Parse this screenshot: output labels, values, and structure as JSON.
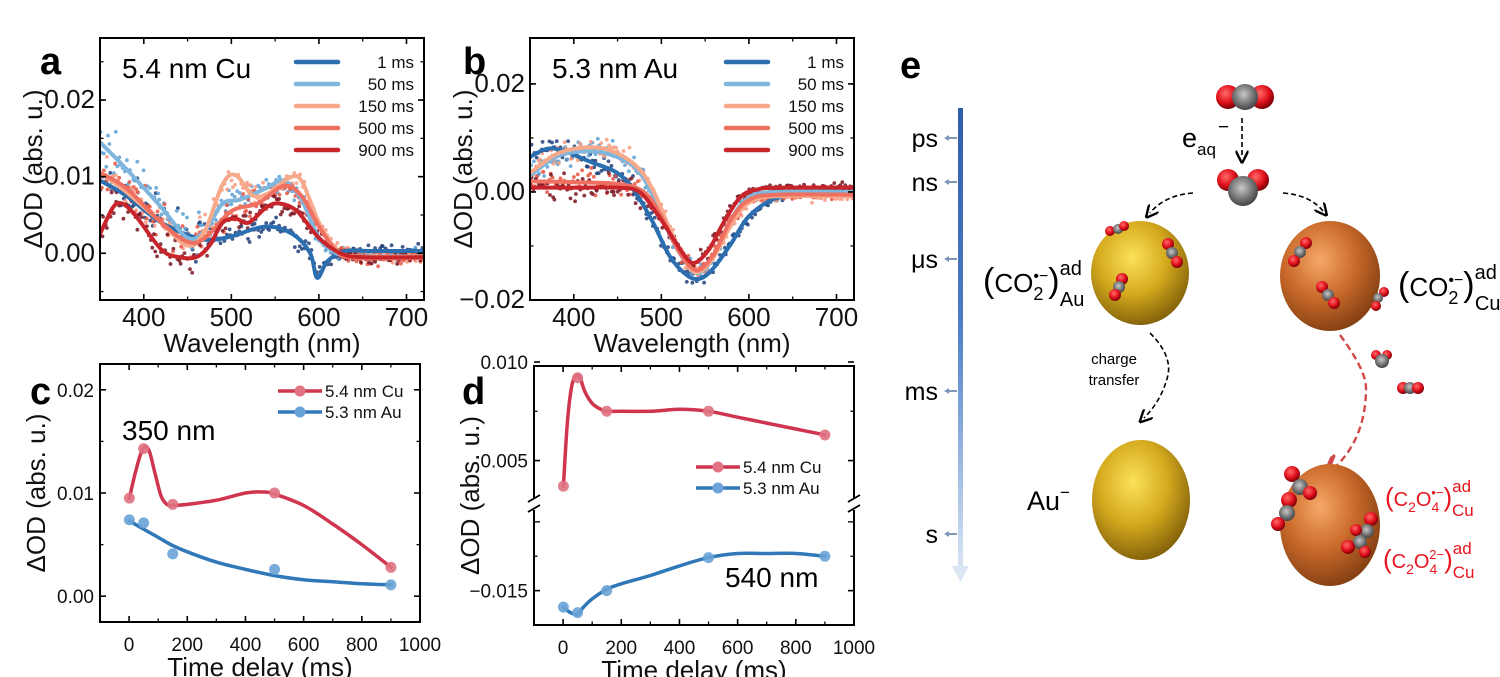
{
  "chart_data": [
    {
      "panel": "a",
      "type": "line",
      "annotation": "5.4 nm Cu",
      "xlabel": "Wavelength (nm)",
      "ylabel": "ΔOD (abs. u.)",
      "xlim": [
        350,
        720
      ],
      "ylim": [
        -0.0061,
        0.0281
      ],
      "xticks": [
        "400",
        "500",
        "600",
        "700"
      ],
      "xtick_values": [
        400,
        500,
        600,
        700
      ],
      "yticks": [
        "0.00",
        "0.01",
        "0.02"
      ],
      "ytick_values": [
        0.0,
        0.01,
        0.02
      ],
      "legend": "top-right",
      "series": [
        {
          "name": "1 ms",
          "color": "#2b6fb0",
          "scatter_color": "#1e3f7a",
          "x": [
            350,
            380,
            420,
            460,
            480,
            500,
            540,
            570,
            590,
            598,
            610,
            630,
            660,
            720
          ],
          "y": [
            0.0095,
            0.0075,
            0.004,
            0.002,
            0.0018,
            0.0022,
            0.0035,
            0.0025,
            0.0,
            -0.0032,
            -0.001,
            0.0003,
            0.0003,
            0.0003
          ]
        },
        {
          "name": "50 ms",
          "color": "#7fb6dd",
          "scatter_color": "#5aa0d4",
          "x": [
            350,
            380,
            420,
            450,
            470,
            490,
            510,
            540,
            560,
            580,
            600,
            620,
            640,
            720
          ],
          "y": [
            0.0145,
            0.011,
            0.006,
            0.002,
            0.003,
            0.0065,
            0.007,
            0.0085,
            0.0095,
            0.007,
            0.002,
            0.0,
            -0.0004,
            -0.0004
          ]
        },
        {
          "name": "150 ms",
          "color": "#f7a98a",
          "scatter_color": "#f79a80",
          "x": [
            350,
            380,
            420,
            450,
            470,
            490,
            505,
            525,
            545,
            565,
            580,
            600,
            620,
            640,
            720
          ],
          "y": [
            0.0105,
            0.008,
            0.004,
            0.001,
            0.003,
            0.009,
            0.0102,
            0.0075,
            0.008,
            0.0098,
            0.0095,
            0.004,
            0.0005,
            -0.0004,
            -0.0004
          ]
        },
        {
          "name": "500 ms",
          "color": "#ef7060",
          "scatter_color": "#e8553f",
          "x": [
            350,
            380,
            420,
            450,
            470,
            500,
            530,
            560,
            580,
            600,
            620,
            640,
            720
          ],
          "y": [
            0.0105,
            0.0085,
            0.004,
            0.0015,
            0.002,
            0.0055,
            0.0065,
            0.0088,
            0.0075,
            0.0035,
            0.0003,
            -0.0006,
            -0.0006
          ]
        },
        {
          "name": "900 ms",
          "color": "#c8242b",
          "scatter_color": "#7a1420",
          "x": [
            350,
            365,
            375,
            390,
            420,
            440,
            460,
            475,
            490,
            505,
            520,
            540,
            555,
            575,
            600,
            625,
            650,
            720
          ],
          "y": [
            0.0025,
            0.006,
            0.0065,
            0.005,
            0.0005,
            -0.0005,
            -0.0005,
            0.001,
            0.004,
            0.0045,
            0.004,
            0.006,
            0.0065,
            0.0055,
            0.002,
            0.0,
            -0.0005,
            -0.0005
          ]
        }
      ]
    },
    {
      "panel": "b",
      "type": "line",
      "annotation": "5.3 nm Au",
      "xlabel": "Wavelength (nm)",
      "ylabel": "ΔOD (abs. u.)",
      "xlim": [
        350,
        720
      ],
      "ylim": [
        -0.02,
        0.0285
      ],
      "xticks": [
        "400",
        "500",
        "600",
        "700"
      ],
      "xtick_values": [
        400,
        500,
        600,
        700
      ],
      "yticks": [
        "−0.02",
        "0.00",
        "0.02"
      ],
      "ytick_values": [
        -0.02,
        0.0,
        0.02
      ],
      "legend": "top-right",
      "series": [
        {
          "name": "1 ms",
          "color": "#2b6fb0",
          "scatter_color": "#1e3f7a",
          "x": [
            350,
            370,
            390,
            420,
            450,
            470,
            490,
            510,
            530,
            545,
            560,
            580,
            600,
            630,
            670,
            720
          ],
          "y": [
            0.0065,
            0.008,
            0.0075,
            0.0055,
            0.0035,
            0.0,
            -0.0055,
            -0.012,
            -0.0155,
            -0.016,
            -0.014,
            -0.0095,
            -0.0045,
            -0.0012,
            0.0,
            0.0
          ]
        },
        {
          "name": "50 ms",
          "color": "#7fb6dd",
          "scatter_color": "#5aa0d4",
          "x": [
            350,
            380,
            410,
            440,
            470,
            490,
            510,
            530,
            543,
            560,
            580,
            600,
            630,
            720
          ],
          "y": [
            0.003,
            0.0065,
            0.0075,
            0.007,
            0.0045,
            -0.0005,
            -0.008,
            -0.0135,
            -0.015,
            -0.012,
            -0.005,
            -0.001,
            0.0,
            0.0
          ]
        },
        {
          "name": "150 ms",
          "color": "#f7a98a",
          "scatter_color": "#f79a80",
          "x": [
            350,
            380,
            410,
            440,
            470,
            490,
            510,
            530,
            543,
            560,
            580,
            600,
            630,
            720
          ],
          "y": [
            0.0035,
            0.007,
            0.0082,
            0.0078,
            0.005,
            0.0005,
            -0.007,
            -0.0135,
            -0.0148,
            -0.012,
            -0.006,
            -0.002,
            -0.0008,
            -0.0008
          ]
        },
        {
          "name": "500 ms",
          "color": "#ef7060",
          "scatter_color": "#e8553f",
          "x": [
            350,
            400,
            450,
            480,
            500,
            520,
            540,
            560,
            580,
            600,
            630,
            720
          ],
          "y": [
            0.002,
            0.0018,
            0.0015,
            0.0,
            -0.0045,
            -0.011,
            -0.0145,
            -0.0115,
            -0.005,
            -0.0015,
            -0.0005,
            -0.0005
          ]
        },
        {
          "name": "900 ms",
          "color": "#c8242b",
          "scatter_color": "#7a1420",
          "x": [
            350,
            400,
            450,
            475,
            495,
            515,
            530,
            540,
            555,
            570,
            590,
            610,
            640,
            720
          ],
          "y": [
            0.0008,
            0.0008,
            0.0008,
            0.0,
            -0.004,
            -0.009,
            -0.0125,
            -0.013,
            -0.0105,
            -0.006,
            -0.001,
            0.0005,
            0.0008,
            0.0008
          ]
        }
      ]
    },
    {
      "panel": "c",
      "type": "line",
      "annotation": "350 nm",
      "xlabel": "Time delay (ms)",
      "ylabel": "ΔOD (abs. u.)",
      "xlim": [
        -100,
        1000
      ],
      "ylim": [
        -0.0025,
        0.0225
      ],
      "xticks": [
        "0",
        "200",
        "400",
        "600",
        "800",
        "1000"
      ],
      "xtick_values": [
        0,
        200,
        400,
        600,
        800,
        1000
      ],
      "yticks": [
        "0.00",
        "0.01",
        "0.02"
      ],
      "ytick_values": [
        0.0,
        0.01,
        0.02
      ],
      "legend": "top-right",
      "series": [
        {
          "name": "5.4 nm Cu",
          "color": "#d0354f",
          "marker_color": "#e07282",
          "x": [
            1,
            50,
            150,
            500,
            900
          ],
          "y": [
            0.0095,
            0.0143,
            0.0089,
            0.01,
            0.0028
          ],
          "fit_x": [
            1,
            20,
            40,
            55,
            70,
            90,
            110,
            130,
            150,
            200,
            300,
            400,
            460,
            500,
            600,
            700,
            800,
            900
          ],
          "fit_y": [
            0.0095,
            0.0118,
            0.0138,
            0.0145,
            0.014,
            0.0118,
            0.0097,
            0.0089,
            0.0088,
            0.0089,
            0.0093,
            0.01,
            0.0101,
            0.0099,
            0.0088,
            0.007,
            0.005,
            0.0028
          ]
        },
        {
          "name": "5.3 nm Au",
          "color": "#3078b8",
          "marker_color": "#6aa3d6",
          "x": [
            1,
            50,
            150,
            500,
            900
          ],
          "y": [
            0.0074,
            0.0071,
            0.0041,
            0.0026,
            0.0011
          ],
          "fit_x": [
            1,
            50,
            100,
            150,
            200,
            300,
            400,
            500,
            600,
            700,
            800,
            900
          ],
          "fit_y": [
            0.0073,
            0.0065,
            0.0057,
            0.0049,
            0.0043,
            0.0033,
            0.0026,
            0.002,
            0.0016,
            0.0014,
            0.0012,
            0.0011
          ]
        }
      ]
    },
    {
      "panel": "d",
      "type": "line",
      "annotation": "540 nm",
      "xlabel": "Time delay (ms)",
      "ylabel": "ΔOD (abs. u.)",
      "xlim": [
        -100,
        1000
      ],
      "broken_y_axis": true,
      "ylim_upper": [
        0.003,
        0.01
      ],
      "ylim_lower": [
        -0.0175,
        -0.0087
      ],
      "xticks": [
        "0",
        "200",
        "400",
        "600",
        "800",
        "1000"
      ],
      "xtick_values": [
        0,
        200,
        400,
        600,
        800,
        1000
      ],
      "yticks": [
        "0.010",
        "0.005",
        "−0.015"
      ],
      "ytick_values": [
        0.01,
        0.005,
        -0.015
      ],
      "legend": "center-right",
      "series": [
        {
          "name": "5.4 nm Cu",
          "color": "#d0354f",
          "marker_color": "#e07282",
          "x": [
            1,
            50,
            150,
            500,
            900
          ],
          "y": [
            0.0037,
            0.0092,
            0.0075,
            0.0075,
            0.0063
          ],
          "fit_x": [
            1,
            15,
            30,
            45,
            58,
            75,
            100,
            130,
            150,
            200,
            300,
            400,
            500,
            600,
            700,
            800,
            900
          ],
          "fit_y": [
            0.0037,
            0.007,
            0.0088,
            0.0093,
            0.0092,
            0.0085,
            0.0079,
            0.0076,
            0.0075,
            0.0075,
            0.0075,
            0.0076,
            0.0075,
            0.0072,
            0.0069,
            0.0066,
            0.0063
          ]
        },
        {
          "name": "5.3 nm Au",
          "color": "#3078b8",
          "marker_color": "#6aa3d6",
          "x": [
            1,
            50,
            150,
            500,
            900
          ],
          "y": [
            -0.0162,
            -0.0166,
            -0.015,
            -0.0126,
            -0.0125
          ],
          "fit_x": [
            1,
            25,
            50,
            70,
            100,
            150,
            200,
            300,
            400,
            500,
            600,
            700,
            800,
            900
          ],
          "fit_y": [
            -0.0162,
            -0.0166,
            -0.0167,
            -0.0162,
            -0.0156,
            -0.0149,
            -0.0145,
            -0.0139,
            -0.0132,
            -0.0126,
            -0.0123,
            -0.0123,
            -0.0123,
            -0.0125
          ]
        }
      ]
    }
  ],
  "panel_labels": {
    "a": "a",
    "b": "b",
    "c": "c",
    "d": "d",
    "e": "e"
  },
  "scheme": {
    "timeline": [
      "ps",
      "ns",
      "μs",
      "ms",
      "s"
    ],
    "electron_label": {
      "base": "e",
      "sub": "aq",
      "sup": "−"
    },
    "au_adsorbate": {
      "open": "(",
      "species": "CO",
      "sub": "2",
      "sup": "•−",
      "close": ")",
      "superscript": "ad",
      "subscript": "Au"
    },
    "cu_adsorbate": {
      "open": "(",
      "species": "CO",
      "sub": "2",
      "sup": "•−",
      "close": ")",
      "superscript": "ad",
      "subscript": "Cu"
    },
    "charge_transfer": [
      "charge",
      "transfer"
    ],
    "au_anion": {
      "base": "Au",
      "sup": "−"
    },
    "oxalate_radical": {
      "open": "(",
      "c": "C",
      "c_sub": "2",
      "o": "O",
      "o_sub": "4",
      "sup": "•−",
      "close": ")",
      "superscript": "ad",
      "subscript": "Cu"
    },
    "oxalate": {
      "open": "(",
      "c": "C",
      "c_sub": "2",
      "o": "O",
      "o_sub": "4",
      "sup": "2−",
      "close": ")",
      "superscript": "ad",
      "subscript": "Cu"
    },
    "colors": {
      "gold": "#d4a81c",
      "copper": "#c8692a",
      "oxygen": "#e0101a",
      "carbon": "#6a6a6a",
      "timeline": "#3a68b0",
      "red_text": "#e8141e",
      "red_arrow": "#d04848"
    }
  }
}
